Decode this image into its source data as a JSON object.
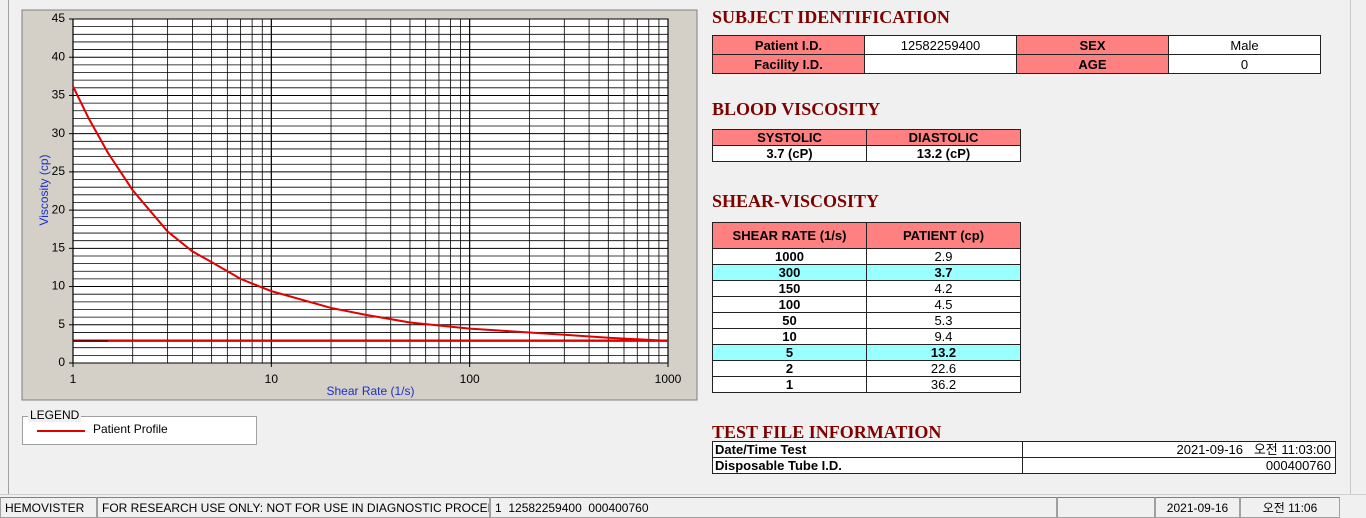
{
  "chart": {
    "type": "line",
    "x_label": "Shear Rate (1/s)",
    "y_label": "Viscosity (cp)",
    "log_x": true,
    "grid": true,
    "xlim": [
      1,
      1000
    ],
    "ylim": [
      0,
      45
    ],
    "xticks": [
      1,
      10,
      100,
      1000
    ],
    "yticks": [
      0,
      5,
      10,
      15,
      20,
      25,
      30,
      35,
      40,
      45
    ],
    "minor_xticks": [
      2,
      3,
      4,
      5,
      6,
      7,
      8,
      9,
      20,
      30,
      40,
      50,
      60,
      70,
      80,
      90,
      200,
      300,
      400,
      500,
      600,
      700,
      800,
      900
    ],
    "minor_yticks": [
      1,
      2,
      3,
      4,
      6,
      7,
      8,
      9,
      11,
      12,
      13,
      14,
      16,
      17,
      18,
      19,
      21,
      22,
      23,
      24,
      26,
      27,
      28,
      29,
      31,
      32,
      33,
      34,
      36,
      37,
      38,
      39,
      41,
      42,
      43,
      44
    ],
    "series": [
      {
        "name": "Patient Profile",
        "color": "#e00000",
        "x": [
          1,
          1.2,
          1.5,
          2,
          3,
          4,
          5,
          7,
          10,
          20,
          30,
          50,
          70,
          100,
          150,
          300,
          500,
          1000
        ],
        "values": [
          36.2,
          32,
          27.5,
          22.6,
          17.2,
          14.6,
          13.2,
          11,
          9.4,
          7.2,
          6.3,
          5.3,
          4.9,
          4.5,
          4.2,
          3.7,
          3.3,
          2.9
        ]
      },
      {
        "color": "#e00000",
        "x": [
          1,
          1000
        ],
        "values": [
          2.9,
          2.9
        ]
      },
      {
        "color": "#7a0000",
        "x": [
          1,
          1.5
        ],
        "values": [
          2.9,
          2.9
        ]
      }
    ]
  },
  "legend": {
    "title": "LEGEND"
  },
  "subject_identification": {
    "title": "SUBJECT IDENTIFICATION",
    "fields": [
      {
        "label": "Patient I.D.",
        "value": "12582259400"
      },
      {
        "label": "SEX",
        "value": "Male"
      },
      {
        "label": "Facility I.D."
      },
      {
        "label": "AGE",
        "value": "0"
      }
    ]
  },
  "blood_viscosity": {
    "title": "BLOOD VISCOSITY",
    "headers": [
      "SYSTOLIC",
      "DIASTOLIC"
    ],
    "values": [
      "3.7 (cP)",
      "13.2 (cP)"
    ]
  },
  "shear_viscosity": {
    "title": "SHEAR-VISCOSITY",
    "headers": [
      "SHEAR RATE (1/s)",
      "PATIENT (cp)"
    ],
    "highlight_color": "#99ffff",
    "rows": [
      {
        "cells": [
          "1000",
          "2.9"
        ]
      },
      {
        "cells": [
          "300",
          "3.7"
        ],
        "highlighted": true
      },
      {
        "cells": [
          "150",
          "4.2"
        ]
      },
      {
        "cells": [
          "100",
          "4.5"
        ]
      },
      {
        "cells": [
          "50",
          "5.3"
        ]
      },
      {
        "cells": [
          "10",
          "9.4"
        ]
      },
      {
        "cells": [
          "5",
          "13.2"
        ],
        "highlighted": true
      },
      {
        "cells": [
          "2",
          "22.6"
        ]
      },
      {
        "cells": [
          "1",
          "36.2"
        ]
      }
    ]
  },
  "test_file_information": {
    "title": "TEST FILE INFORMATION",
    "rows": [
      [
        "Date/Time Test",
        "2021-09-16   오전 11:03:00"
      ],
      [
        "Disposable Tube I.D.",
        "000400760"
      ]
    ]
  },
  "status_bar": [
    "HEMOVISTER",
    "FOR RESEARCH USE ONLY: NOT FOR USE IN DIAGNOSTIC PROCEDURES",
    "1  12582259400  000400760",
    "2021-09-16",
    "오전 11:06"
  ]
}
